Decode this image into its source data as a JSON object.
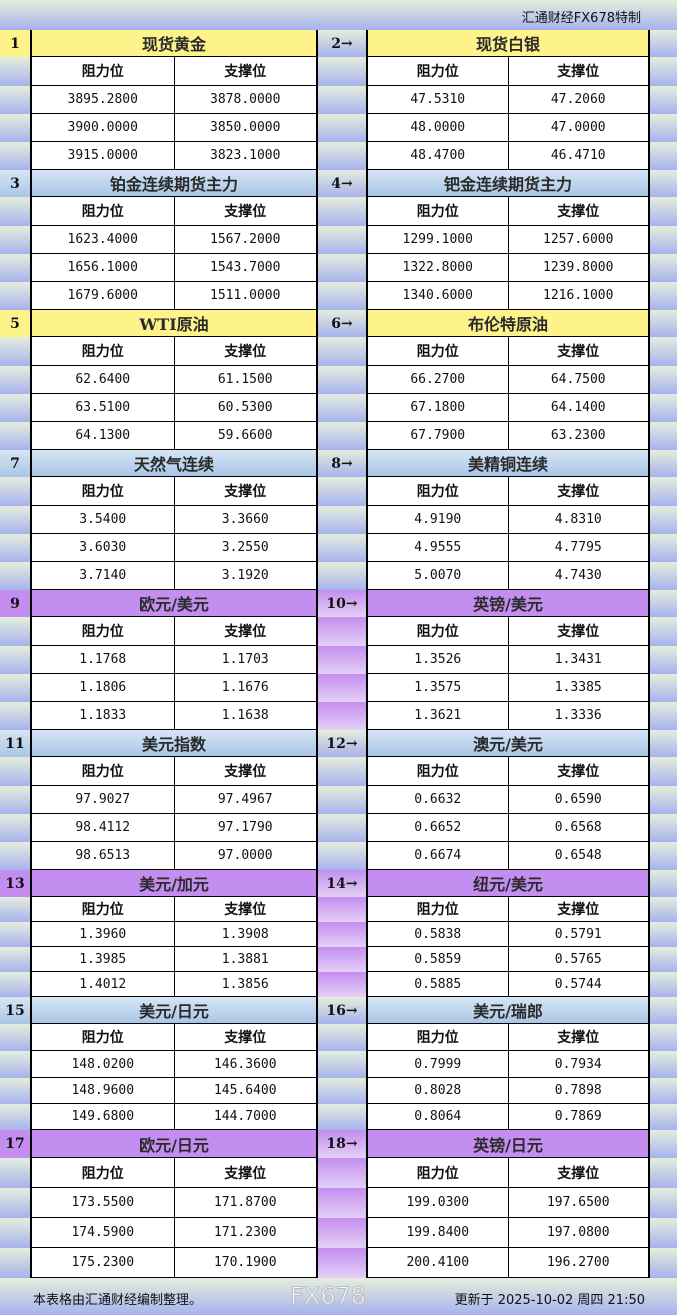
{
  "header": {
    "title": "汇通财经FX678特制"
  },
  "columns": {
    "resistance": "阻力位",
    "support": "支撑位"
  },
  "blocks": [
    {
      "num": "1",
      "title": "现货黄金",
      "color": "yellow",
      "rows": [
        [
          "3895.2800",
          "3878.0000"
        ],
        [
          "3900.0000",
          "3850.0000"
        ],
        [
          "3915.0000",
          "3823.1000"
        ]
      ]
    },
    {
      "num": "2→",
      "title": "现货白银",
      "color": "yellow",
      "rows": [
        [
          "47.5310",
          "47.2060"
        ],
        [
          "48.0000",
          "47.0000"
        ],
        [
          "48.4700",
          "46.4710"
        ]
      ]
    },
    {
      "num": "3",
      "title": "铂金连续期货主力",
      "color": "blue",
      "rows": [
        [
          "1623.4000",
          "1567.2000"
        ],
        [
          "1656.1000",
          "1543.7000"
        ],
        [
          "1679.6000",
          "1511.0000"
        ]
      ]
    },
    {
      "num": "4→",
      "title": "钯金连续期货主力",
      "color": "blue",
      "rows": [
        [
          "1299.1000",
          "1257.6000"
        ],
        [
          "1322.8000",
          "1239.8000"
        ],
        [
          "1340.6000",
          "1216.1000"
        ]
      ]
    },
    {
      "num": "5",
      "title": "WTI原油",
      "color": "yellow",
      "rows": [
        [
          "62.6400",
          "61.1500"
        ],
        [
          "63.5100",
          "60.5300"
        ],
        [
          "64.1300",
          "59.6600"
        ]
      ]
    },
    {
      "num": "6→",
      "title": "布伦特原油",
      "color": "yellow",
      "rows": [
        [
          "66.2700",
          "64.7500"
        ],
        [
          "67.1800",
          "64.1400"
        ],
        [
          "67.7900",
          "63.2300"
        ]
      ]
    },
    {
      "num": "7",
      "title": "天然气连续",
      "color": "blue",
      "rows": [
        [
          "3.5400",
          "3.3660"
        ],
        [
          "3.6030",
          "3.2550"
        ],
        [
          "3.7140",
          "3.1920"
        ]
      ]
    },
    {
      "num": "8→",
      "title": "美精铜连续",
      "color": "blue",
      "rows": [
        [
          "4.9190",
          "4.8310"
        ],
        [
          "4.9555",
          "4.7795"
        ],
        [
          "5.0070",
          "4.7430"
        ]
      ]
    },
    {
      "num": "9",
      "title": "欧元/美元",
      "color": "purple",
      "rows": [
        [
          "1.1768",
          "1.1703"
        ],
        [
          "1.1806",
          "1.1676"
        ],
        [
          "1.1833",
          "1.1638"
        ]
      ]
    },
    {
      "num": "10→",
      "title": "英镑/美元",
      "color": "purple",
      "rows": [
        [
          "1.3526",
          "1.3431"
        ],
        [
          "1.3575",
          "1.3385"
        ],
        [
          "1.3621",
          "1.3336"
        ]
      ]
    },
    {
      "num": "11",
      "title": "美元指数",
      "color": "blue",
      "rows": [
        [
          "97.9027",
          "97.4967"
        ],
        [
          "98.4112",
          "97.1790"
        ],
        [
          "98.6513",
          "97.0000"
        ]
      ]
    },
    {
      "num": "12→",
      "title": "澳元/美元",
      "color": "blue",
      "rows": [
        [
          "0.6632",
          "0.6590"
        ],
        [
          "0.6652",
          "0.6568"
        ],
        [
          "0.6674",
          "0.6548"
        ]
      ]
    },
    {
      "num": "13",
      "title": "美元/加元",
      "color": "purple",
      "rows": [
        [
          "1.3960",
          "1.3908"
        ],
        [
          "1.3985",
          "1.3881"
        ],
        [
          "1.4012",
          "1.3856"
        ]
      ]
    },
    {
      "num": "14→",
      "title": "纽元/美元",
      "color": "purple",
      "rows": [
        [
          "0.5838",
          "0.5791"
        ],
        [
          "0.5859",
          "0.5765"
        ],
        [
          "0.5885",
          "0.5744"
        ]
      ]
    },
    {
      "num": "15",
      "title": "美元/日元",
      "color": "blue",
      "rows": [
        [
          "148.0200",
          "146.3600"
        ],
        [
          "148.9600",
          "145.6400"
        ],
        [
          "149.6800",
          "144.7000"
        ]
      ]
    },
    {
      "num": "16→",
      "title": "美元/瑞郎",
      "color": "blue",
      "rows": [
        [
          "0.7999",
          "0.7934"
        ],
        [
          "0.8028",
          "0.7898"
        ],
        [
          "0.8064",
          "0.7869"
        ]
      ]
    },
    {
      "num": "17",
      "title": "欧元/日元",
      "color": "purple",
      "rows": [
        [
          "173.5500",
          "171.8700"
        ],
        [
          "174.5900",
          "171.2300"
        ],
        [
          "175.2300",
          "170.1900"
        ]
      ]
    },
    {
      "num": "18→",
      "title": "英镑/日元",
      "color": "purple",
      "rows": [
        [
          "199.0300",
          "197.6500"
        ],
        [
          "199.8400",
          "197.0800"
        ],
        [
          "200.4100",
          "196.2700"
        ]
      ]
    }
  ],
  "footer": {
    "note": "本表格由汇通财经编制整理。",
    "updated": "更新于 2025-10-02 周四 21:50"
  },
  "watermark": "FX678",
  "colors": {
    "yellow": "#fdf38a",
    "blue": "#b9d4ee",
    "purple": "#c38ef0"
  }
}
